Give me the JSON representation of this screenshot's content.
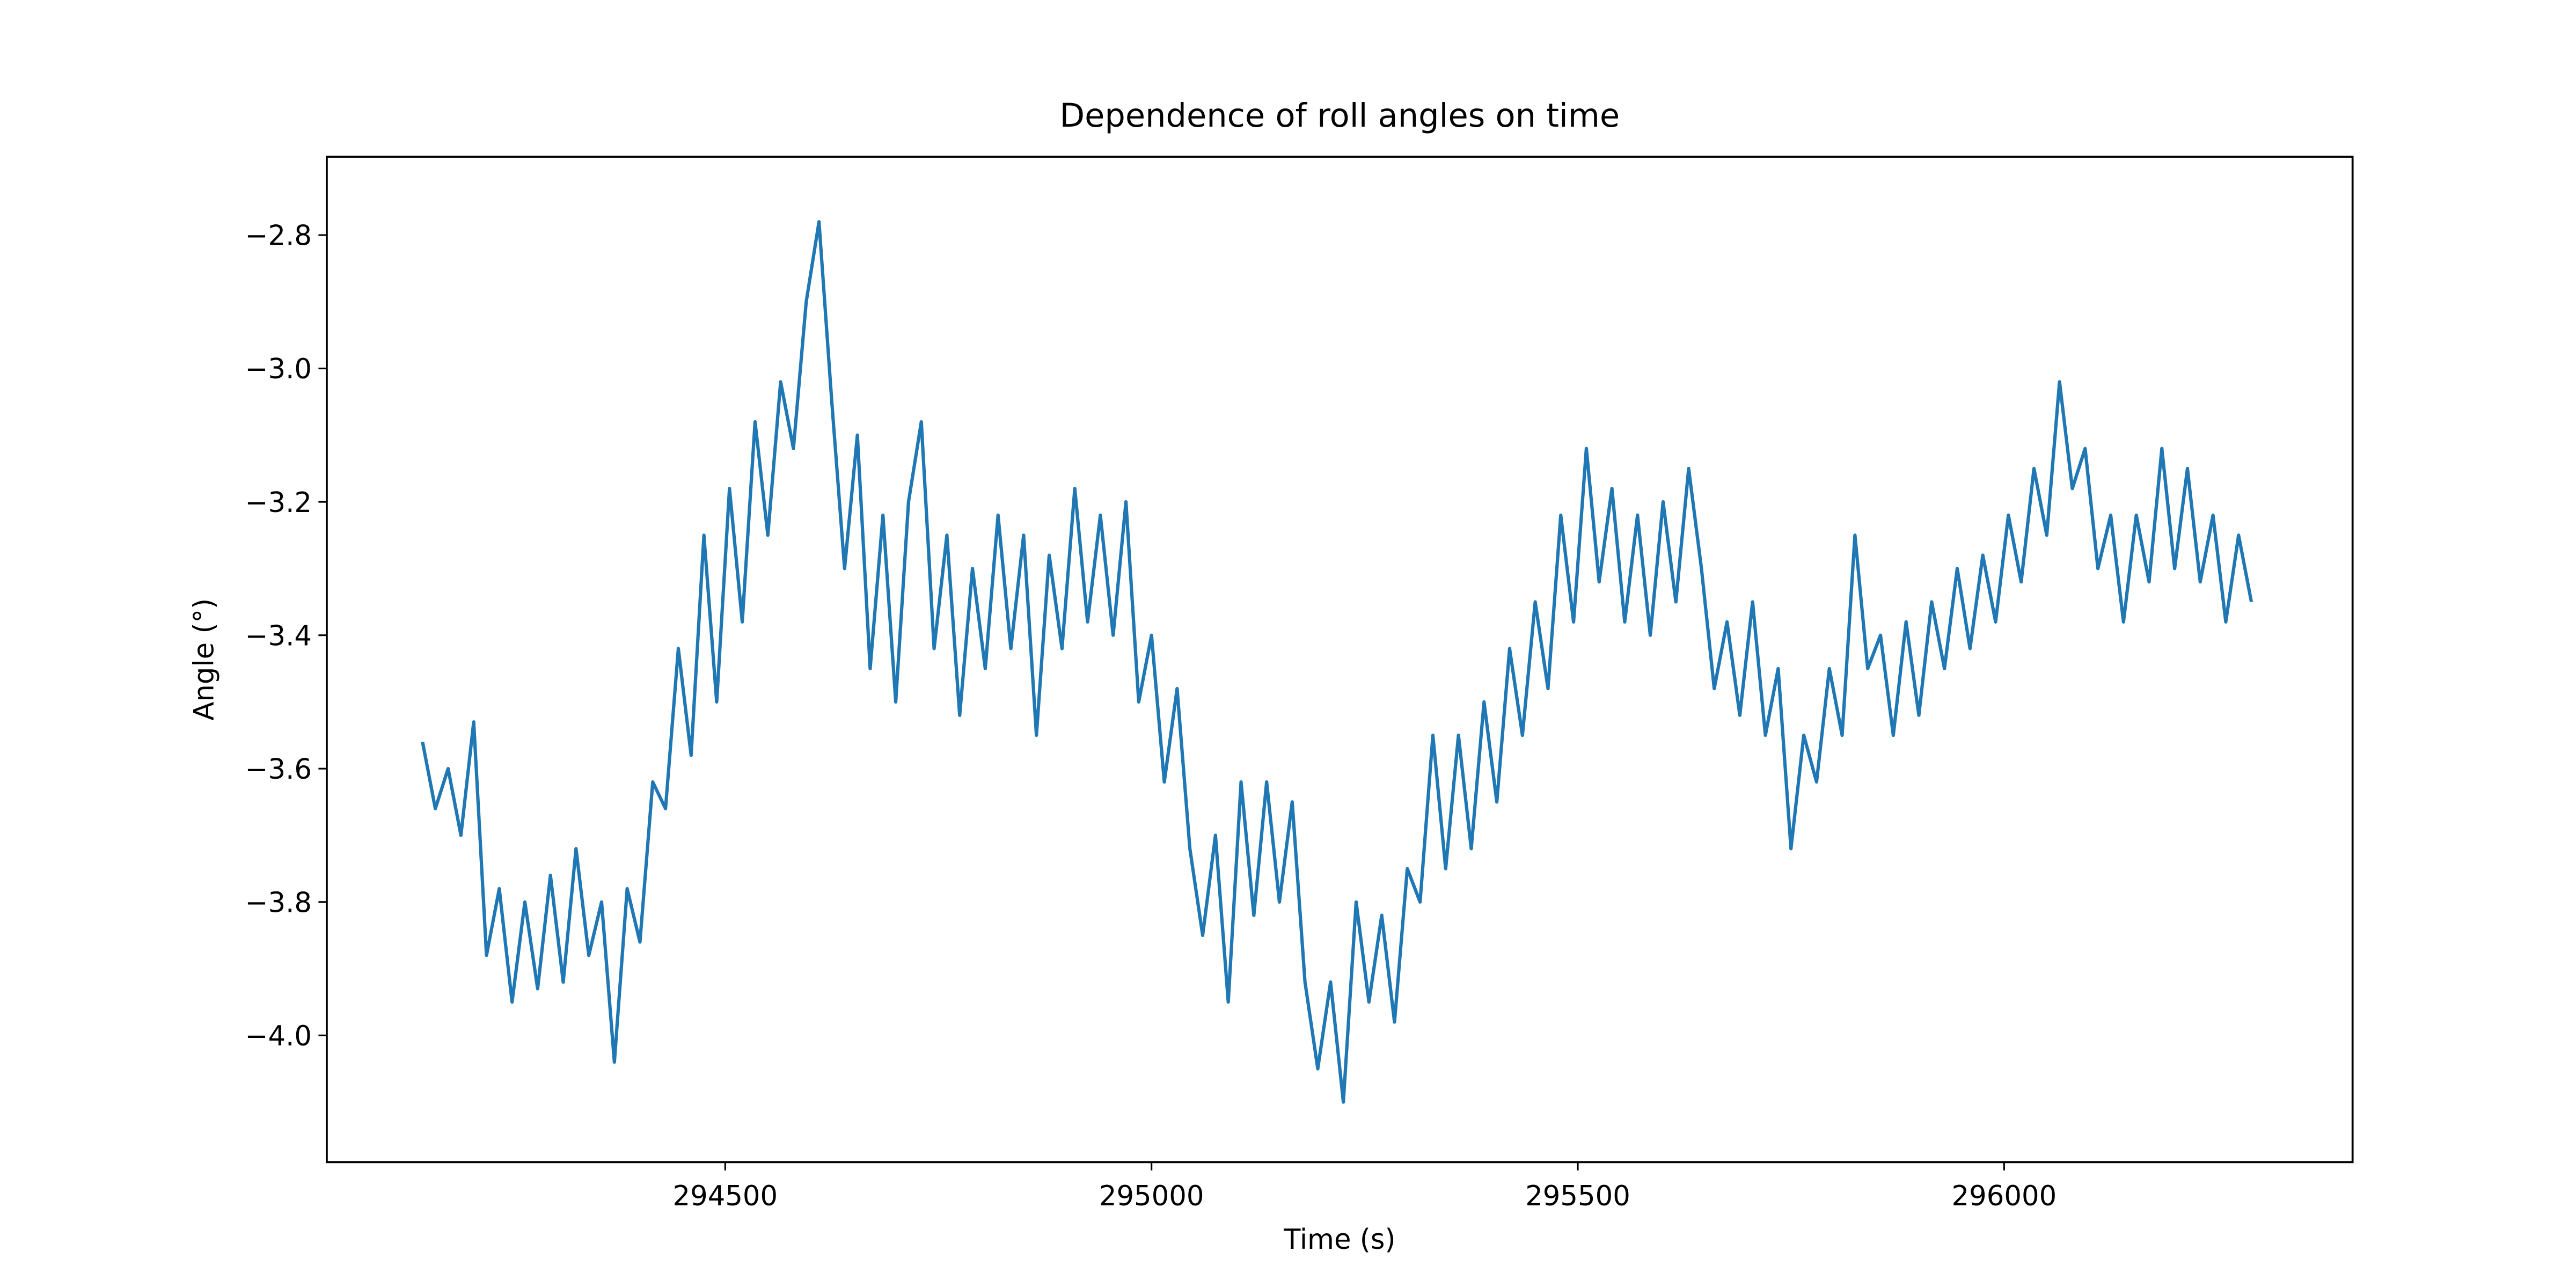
{
  "chart_data": {
    "type": "line",
    "title": "Dependence of roll angles on time",
    "xlabel": "Time (s)",
    "ylabel": "Angle (°)",
    "x": [
      294145,
      294160,
      294175,
      294190,
      294205,
      294220,
      294235,
      294250,
      294265,
      294280,
      294295,
      294310,
      294325,
      294340,
      294355,
      294370,
      294385,
      294400,
      294415,
      294430,
      294445,
      294460,
      294475,
      294490,
      294505,
      294520,
      294535,
      294550,
      294565,
      294580,
      294595,
      294610,
      294625,
      294640,
      294655,
      294670,
      294685,
      294700,
      294715,
      294730,
      294745,
      294760,
      294775,
      294790,
      294805,
      294820,
      294835,
      294850,
      294865,
      294880,
      294895,
      294910,
      294925,
      294940,
      294955,
      294970,
      294985,
      295000,
      295015,
      295030,
      295045,
      295060,
      295075,
      295090,
      295105,
      295120,
      295135,
      295150,
      295165,
      295180,
      295195,
      295210,
      295225,
      295240,
      295255,
      295270,
      295285,
      295300,
      295315,
      295330,
      295345,
      295360,
      295375,
      295390,
      295405,
      295420,
      295435,
      295450,
      295465,
      295480,
      295495,
      295510,
      295525,
      295540,
      295555,
      295570,
      295585,
      295600,
      295615,
      295630,
      295645,
      295660,
      295675,
      295690,
      295705,
      295720,
      295735,
      295750,
      295765,
      295780,
      295795,
      295810,
      295825,
      295840,
      295855,
      295870,
      295885,
      295900,
      295915,
      295930,
      295945,
      295960,
      295975,
      295990,
      296005,
      296020,
      296035,
      296050,
      296065,
      296080,
      296095,
      296110,
      296125,
      296140,
      296155,
      296170,
      296185,
      296200,
      296215,
      296230,
      296245,
      296260,
      296275,
      296290
    ],
    "series": [
      {
        "color": "#1f77b4",
        "values": [
          -3.56,
          -3.66,
          -3.6,
          -3.7,
          -3.53,
          -3.88,
          -3.78,
          -3.95,
          -3.8,
          -3.93,
          -3.76,
          -3.92,
          -3.72,
          -3.88,
          -3.8,
          -4.04,
          -3.78,
          -3.86,
          -3.62,
          -3.66,
          -3.42,
          -3.58,
          -3.25,
          -3.5,
          -3.18,
          -3.38,
          -3.08,
          -3.25,
          -3.02,
          -3.12,
          -2.9,
          -2.78,
          -3.05,
          -3.3,
          -3.1,
          -3.45,
          -3.22,
          -3.5,
          -3.2,
          -3.08,
          -3.42,
          -3.25,
          -3.52,
          -3.3,
          -3.45,
          -3.22,
          -3.42,
          -3.25,
          -3.55,
          -3.28,
          -3.42,
          -3.18,
          -3.38,
          -3.22,
          -3.4,
          -3.2,
          -3.5,
          -3.4,
          -3.62,
          -3.48,
          -3.72,
          -3.85,
          -3.7,
          -3.95,
          -3.62,
          -3.82,
          -3.62,
          -3.8,
          -3.65,
          -3.92,
          -4.05,
          -3.92,
          -4.1,
          -3.8,
          -3.95,
          -3.82,
          -3.98,
          -3.75,
          -3.8,
          -3.55,
          -3.75,
          -3.55,
          -3.72,
          -3.5,
          -3.65,
          -3.42,
          -3.55,
          -3.35,
          -3.48,
          -3.22,
          -3.38,
          -3.12,
          -3.32,
          -3.18,
          -3.38,
          -3.22,
          -3.4,
          -3.2,
          -3.35,
          -3.15,
          -3.3,
          -3.48,
          -3.38,
          -3.52,
          -3.35,
          -3.55,
          -3.45,
          -3.72,
          -3.55,
          -3.62,
          -3.45,
          -3.55,
          -3.25,
          -3.45,
          -3.4,
          -3.55,
          -3.38,
          -3.52,
          -3.35,
          -3.45,
          -3.3,
          -3.42,
          -3.28,
          -3.38,
          -3.22,
          -3.32,
          -3.15,
          -3.25,
          -3.02,
          -3.18,
          -3.12,
          -3.3,
          -3.22,
          -3.38,
          -3.22,
          -3.32,
          -3.12,
          -3.3,
          -3.15,
          -3.32,
          -3.22,
          -3.38,
          -3.25,
          -3.35
        ]
      }
    ],
    "xlim": [
      294032.7,
      296408.7
    ],
    "ylim": [
      -4.19,
      -2.6825
    ],
    "xticks": [
      294500,
      295000,
      295500,
      296000
    ],
    "yticks": [
      {
        "value": -4.0,
        "label": "−4.0"
      },
      {
        "value": -3.8,
        "label": "−3.8"
      },
      {
        "value": -3.6,
        "label": "−3.6"
      },
      {
        "value": -3.4,
        "label": "−3.4"
      },
      {
        "value": -3.2,
        "label": "−3.2"
      },
      {
        "value": -3.0,
        "label": "−3.0"
      },
      {
        "value": -2.8,
        "label": "−2.8"
      }
    ]
  }
}
